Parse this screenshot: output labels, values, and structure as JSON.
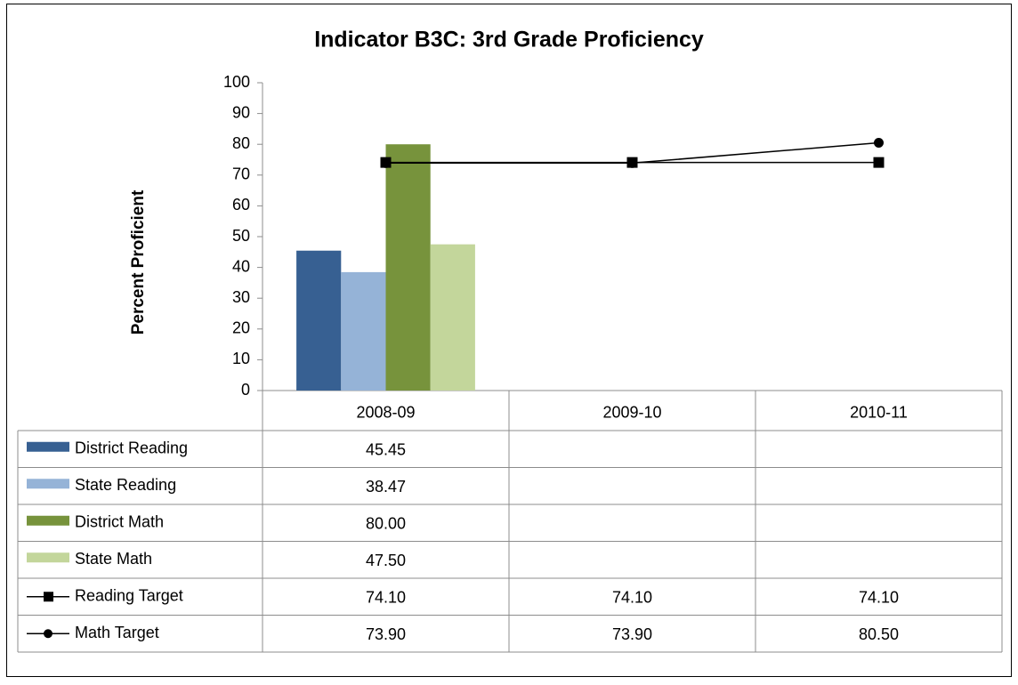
{
  "chart_data": {
    "type": "bar",
    "title": "Indicator B3C: 3rd Grade Proficiency",
    "y_label": "Percent Proficient",
    "categories": [
      "2008-09",
      "2009-10",
      "2010-11"
    ],
    "ylim": [
      0,
      100
    ],
    "yticks": [
      0,
      10,
      20,
      30,
      40,
      50,
      60,
      70,
      80,
      90,
      100
    ],
    "grid": false,
    "legend": "data-table",
    "series": [
      {
        "name": "District Reading",
        "type": "bar",
        "color": "#376092",
        "values": [
          45.45,
          null,
          null
        ],
        "value_labels": [
          "45.45",
          null,
          null
        ]
      },
      {
        "name": "State Reading",
        "type": "bar",
        "color": "#95b3d7",
        "values": [
          38.47,
          null,
          null
        ],
        "value_labels": [
          "38.47",
          null,
          null
        ]
      },
      {
        "name": "District Math",
        "type": "bar",
        "color": "#77933c",
        "values": [
          80.0,
          null,
          null
        ],
        "value_labels": [
          "80.00",
          null,
          null
        ]
      },
      {
        "name": "State Math",
        "type": "bar",
        "color": "#c3d69b",
        "values": [
          47.5,
          null,
          null
        ],
        "value_labels": [
          "47.50",
          null,
          null
        ]
      },
      {
        "name": "Reading Target",
        "type": "line",
        "marker": "square",
        "color": "#000000",
        "values": [
          74.1,
          74.1,
          74.1
        ],
        "value_labels": [
          "74.10",
          "74.10",
          "74.10"
        ]
      },
      {
        "name": "Math Target",
        "type": "line",
        "marker": "circle",
        "color": "#000000",
        "values": [
          73.9,
          73.9,
          80.5
        ],
        "value_labels": [
          "73.90",
          "73.90",
          "80.50"
        ]
      }
    ]
  }
}
